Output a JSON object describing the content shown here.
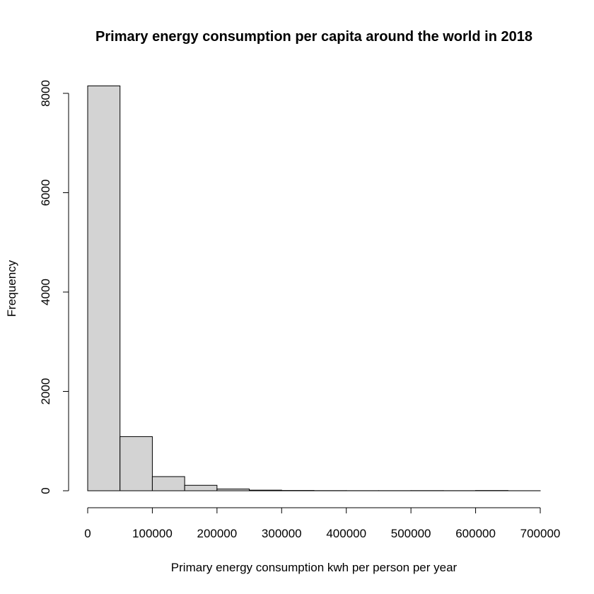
{
  "chart_data": {
    "type": "bar",
    "subtype": "histogram",
    "title": "Primary energy consumption per capita around the world in 2018",
    "xlabel": "Primary energy consumption kwh per person per year",
    "ylabel": "Frequency",
    "bin_edges": [
      0,
      50000,
      100000,
      150000,
      200000,
      250000,
      300000,
      350000,
      400000,
      450000,
      500000,
      550000,
      600000,
      650000,
      700000
    ],
    "values": [
      8150,
      1090,
      285,
      110,
      35,
      12,
      6,
      3,
      2,
      2,
      3,
      2,
      5,
      1
    ],
    "xlim": [
      0,
      700000
    ],
    "ylim": [
      0,
      8000
    ],
    "x_ticks": [
      0,
      100000,
      200000,
      300000,
      400000,
      500000,
      600000,
      700000
    ],
    "x_tick_labels": [
      "0",
      "100000",
      "200000",
      "300000",
      "400000",
      "500000",
      "600000",
      "700000"
    ],
    "y_ticks": [
      0,
      2000,
      4000,
      6000,
      8000
    ],
    "y_tick_labels": [
      "0",
      "2000",
      "4000",
      "6000",
      "8000"
    ],
    "bar_fill": "#d3d3d3",
    "bar_stroke": "#000000",
    "grid": false,
    "legend": "none"
  }
}
